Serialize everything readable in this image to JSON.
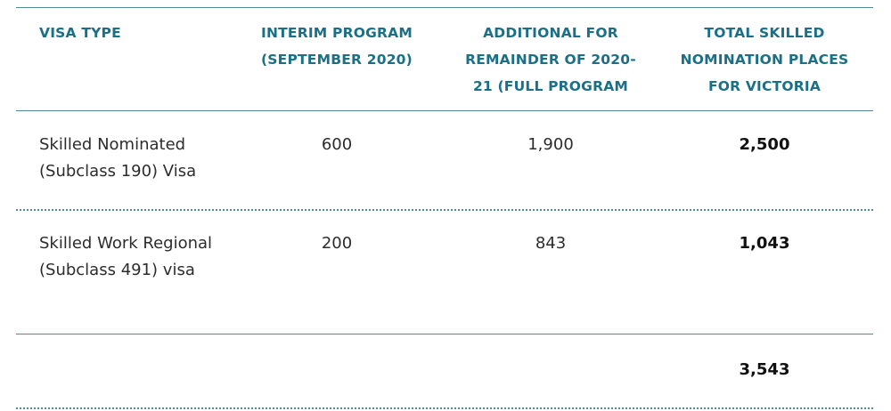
{
  "table": {
    "headers": [
      "VISA TYPE",
      "INTERIM PROGRAM (SEPTEMBER 2020)",
      "ADDITIONAL FOR REMAINDER OF 2020-21 (FULL PROGRAM",
      "TOTAL SKILLED NOMINATION PLACES FOR VICTORIA"
    ],
    "rows": [
      {
        "visa_type": "Skilled Nominated (Subclass 190) Visa",
        "interim": "600",
        "additional": "1,900",
        "total": "2,500"
      },
      {
        "visa_type": "Skilled Work Regional (Subclass 491) visa",
        "interim": "200",
        "additional": "843",
        "total": "1,043"
      }
    ],
    "grand_total": "3,543"
  },
  "colors": {
    "header_text": "#1b6f86",
    "rule": "#4f8a9a",
    "body_text": "#2c2c2c"
  }
}
